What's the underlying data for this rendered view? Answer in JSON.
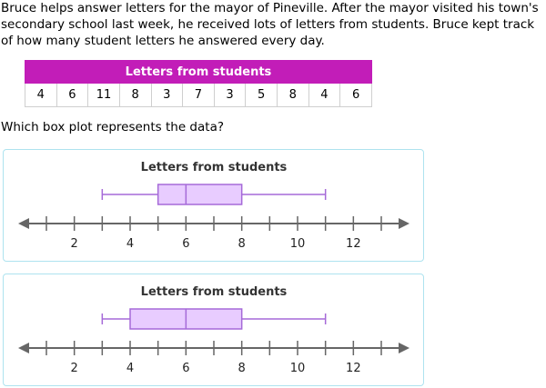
{
  "problem": {
    "text": "Bruce helps answer letters for the mayor of Pineville. After the mayor visited his town's secondary school last week, he received lots of letters from students. Bruce kept track of how many student letters he answered every day."
  },
  "table": {
    "title": "Letters from students",
    "values": [
      "4",
      "6",
      "11",
      "8",
      "3",
      "7",
      "3",
      "5",
      "8",
      "4",
      "6"
    ]
  },
  "question": "Which box plot represents the data?",
  "options": [
    {
      "title": "Letters from students",
      "axis": {
        "min": 1,
        "max": 13,
        "tick_labels": [
          "2",
          "4",
          "6",
          "8",
          "10",
          "12"
        ]
      },
      "box": {
        "min": 3,
        "q1": 5,
        "median": 6,
        "q3": 8,
        "max": 11
      }
    },
    {
      "title": "Letters from students",
      "axis": {
        "min": 1,
        "max": 13,
        "tick_labels": [
          "2",
          "4",
          "6",
          "8",
          "10",
          "12"
        ]
      },
      "box": {
        "min": 3,
        "q1": 4,
        "median": 6,
        "q3": 8,
        "max": 11
      }
    }
  ],
  "colors": {
    "header": "#c21db8",
    "box_fill": "#e8ccff",
    "box_stroke": "#a56ad8",
    "axis": "#666666",
    "option_border": "#aee3ef"
  },
  "chart_data": [
    {
      "type": "box",
      "title": "Letters from students",
      "xlim": [
        1,
        13
      ],
      "tick_labels": [
        2,
        4,
        6,
        8,
        10,
        12
      ],
      "min": 3,
      "q1": 5,
      "median": 6,
      "q3": 8,
      "max": 11
    },
    {
      "type": "box",
      "title": "Letters from students",
      "xlim": [
        1,
        13
      ],
      "tick_labels": [
        2,
        4,
        6,
        8,
        10,
        12
      ],
      "min": 3,
      "q1": 4,
      "median": 6,
      "q3": 8,
      "max": 11
    }
  ]
}
